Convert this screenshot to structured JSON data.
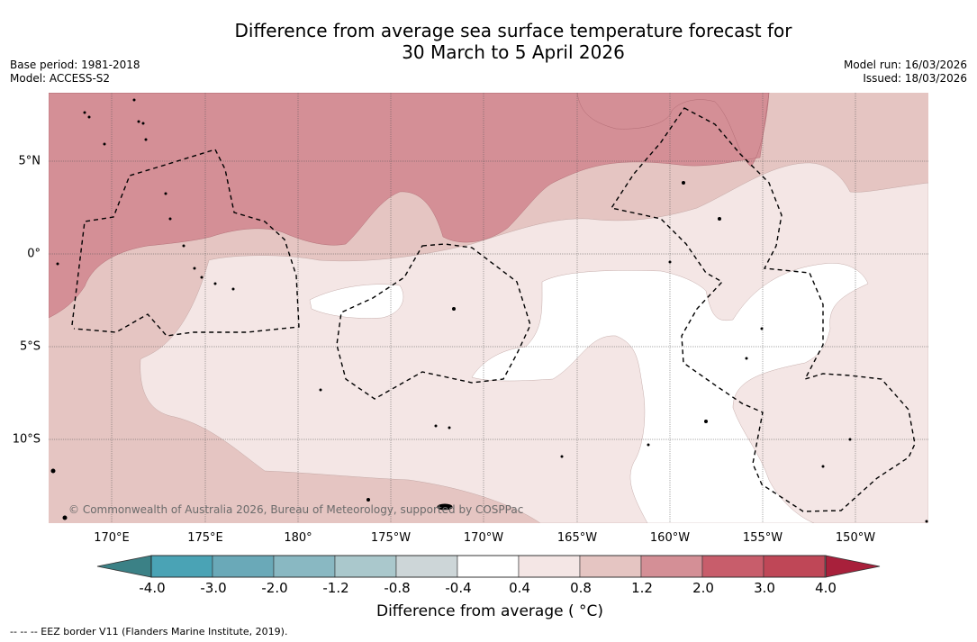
{
  "title": {
    "line1": "Difference from average sea surface temperature forecast for",
    "line2": "30 March to 5 April 2026"
  },
  "meta": {
    "base_period": "Base period: 1981-2018",
    "model": "Model: ACCESS-S2",
    "model_run": "Model run: 16/03/2026",
    "issued": "Issued: 18/03/2026"
  },
  "map": {
    "credit": "© Commonwealth of Australia 2026, Bureau of Meteorology, supported by COSPPac",
    "lon_labels": [
      "170°E",
      "175°E",
      "180°",
      "175°W",
      "170°W",
      "165°W",
      "160°W",
      "155°W",
      "150°W"
    ],
    "lat_labels": [
      "5°N",
      "0°",
      "5°S",
      "10°S"
    ]
  },
  "colorbar": {
    "ticks": [
      "-4.0",
      "-3.0",
      "-2.0",
      "-1.2",
      "-0.8",
      "-0.4",
      "0.4",
      "0.8",
      "1.2",
      "2.0",
      "3.0",
      "4.0"
    ],
    "colors": [
      "#4aa3b5",
      "#6aa9b8",
      "#89b8c2",
      "#aac8cc",
      "#cdd6d8",
      "#ffffff",
      "#f4e6e5",
      "#e5c5c2",
      "#d48f96",
      "#c85d6b",
      "#bf4757"
    ],
    "extend_low_color": "#3b8186",
    "extend_high_color": "#a8203b",
    "label": "Difference from average ( °C)"
  },
  "footer": {
    "legend": "--  --  -- EEZ border V11 (Flanders Marine Institute, 2019)."
  }
}
